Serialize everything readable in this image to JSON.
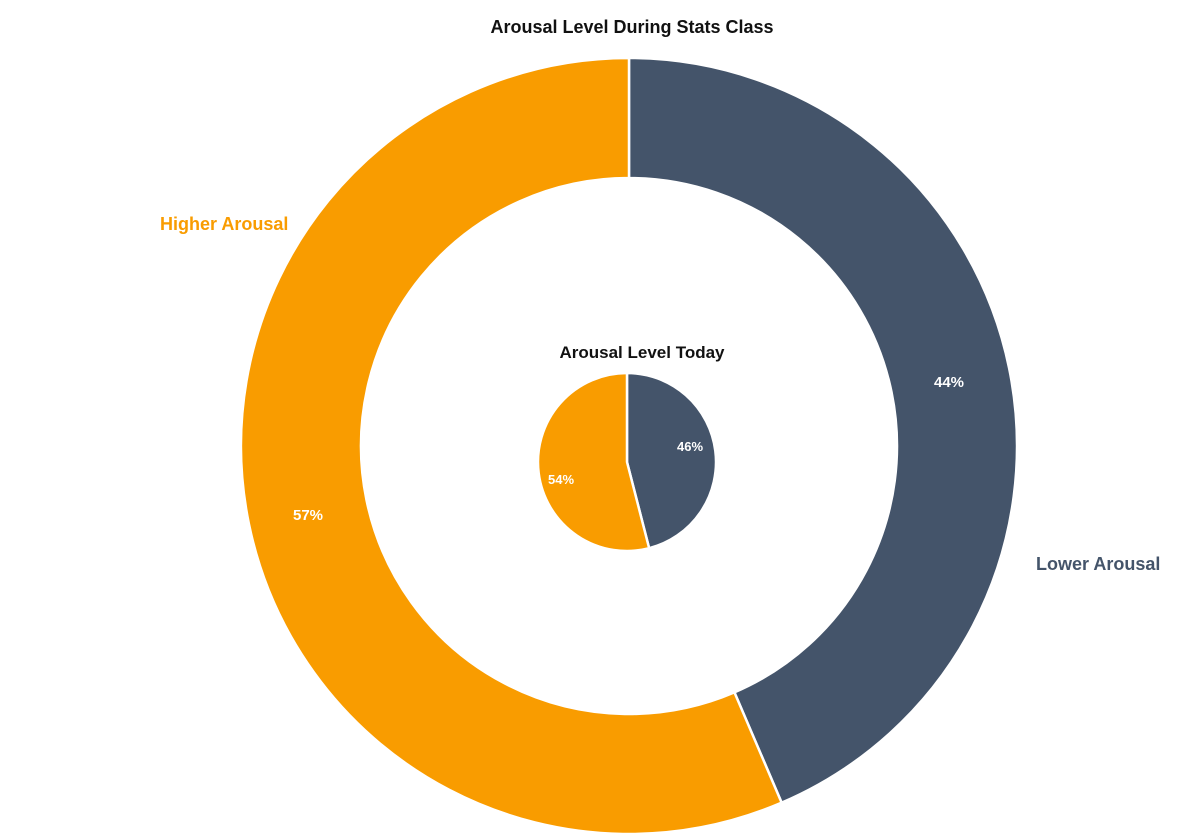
{
  "chart_data": [
    {
      "type": "donut",
      "title": "Arousal Level During Stats Class",
      "categories": [
        "Lower Arousal",
        "Higher Arousal"
      ],
      "values": [
        44,
        57
      ],
      "value_labels": [
        "44%",
        "57%"
      ],
      "colors": [
        "#44546a",
        "#f99c00"
      ],
      "category_label_colors": [
        "#44546a",
        "#f99c00"
      ]
    },
    {
      "type": "pie",
      "title": "Arousal Level Today",
      "categories": [
        "Lower Arousal",
        "Higher Arousal"
      ],
      "values": [
        46,
        54
      ],
      "value_labels": [
        "46%",
        "54%"
      ],
      "colors": [
        "#44546a",
        "#f99c00"
      ]
    }
  ]
}
